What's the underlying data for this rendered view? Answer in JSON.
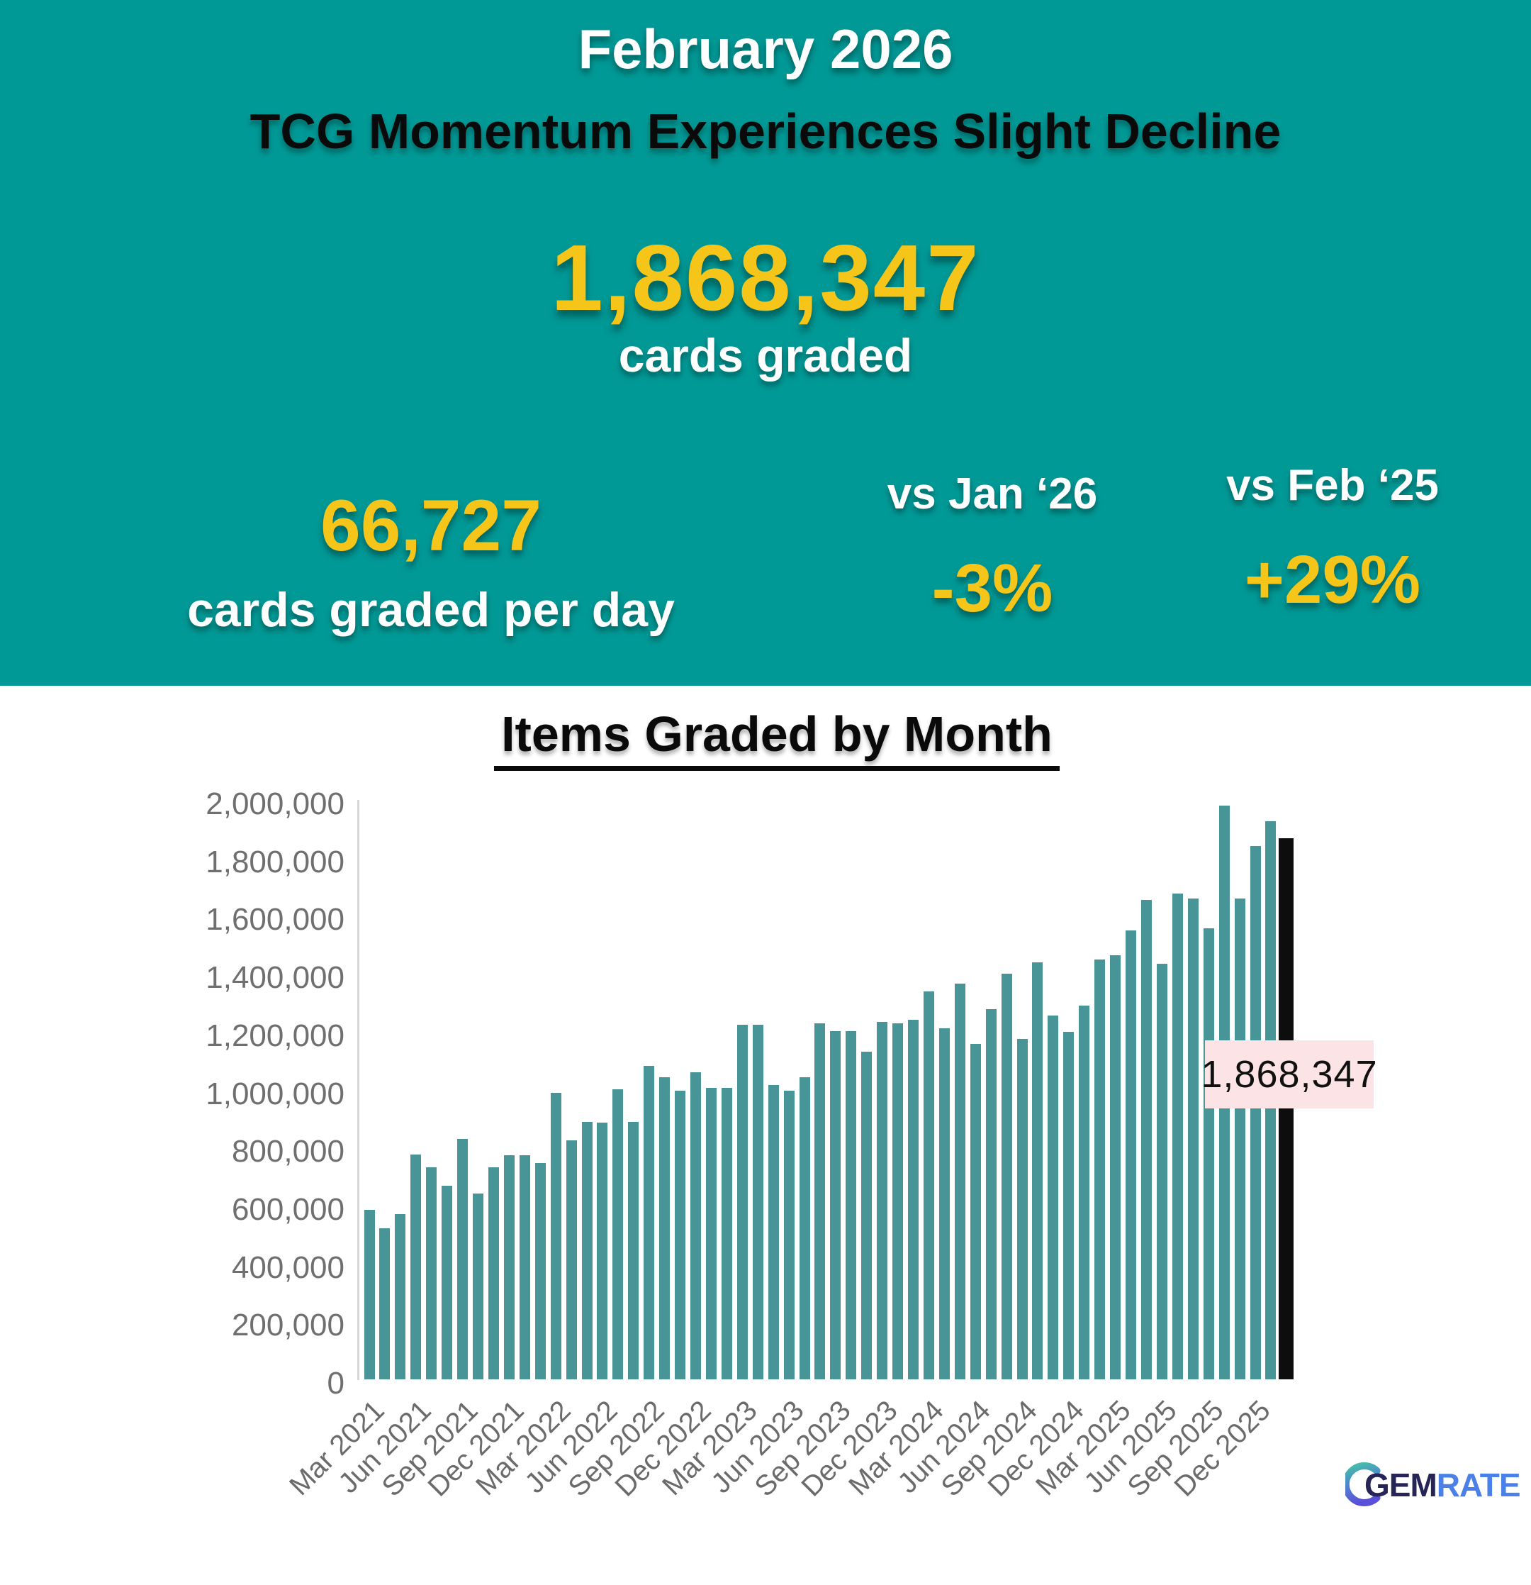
{
  "header": {
    "month_title": "February 2026",
    "headline": "TCG Momentum Experiences Slight Decline",
    "total": {
      "value": "1,868,347",
      "label": "cards graded"
    },
    "per_day": {
      "value": "66,727",
      "label": "cards graded per day"
    },
    "vs_prev_month": {
      "label": "vs Jan ‘26",
      "value": "-3%"
    },
    "vs_prev_year": {
      "label": "vs Feb ‘25",
      "value": "+29%"
    }
  },
  "colors": {
    "header_background": "#009996",
    "accent_yellow": "#f5c51a",
    "bar_teal": "#479596",
    "highlight_bar_black": "#0d0d0d",
    "annotation_pink": "#fce4e6",
    "axis_gray": "#6f6f6f"
  },
  "chart": {
    "title": "Items Graded by Month",
    "annotation": "1,868,347"
  },
  "chart_data": {
    "type": "bar",
    "title": "Items Graded by Month",
    "xlabel": "",
    "ylabel": "",
    "ylim": [
      0,
      2000000
    ],
    "grid": false,
    "legend": "none",
    "y_ticks": [
      "2,000,000",
      "1,800,000",
      "1,600,000",
      "1,400,000",
      "1,200,000",
      "1,000,000",
      "800,000",
      "600,000",
      "400,000",
      "200,000",
      "0"
    ],
    "x_tick_every": 3,
    "x_tick_labels": [
      "Mar 2021",
      "Jun 2021",
      "Sep 2021",
      "Dec 2021",
      "Mar 2022",
      "Jun 2022",
      "Sep 2022",
      "Dec 2022",
      "Mar 2023",
      "Jun 2023",
      "Sep 2023",
      "Dec 2023",
      "Mar 2024",
      "Jun 2024",
      "Sep 2024",
      "Dec 2024",
      "Mar 2025",
      "Jun 2025",
      "Sep 2025",
      "Dec 2025"
    ],
    "categories": [
      "Mar 2021",
      "Apr 2021",
      "May 2021",
      "Jun 2021",
      "Jul 2021",
      "Aug 2021",
      "Sep 2021",
      "Oct 2021",
      "Nov 2021",
      "Dec 2021",
      "Jan 2022",
      "Feb 2022",
      "Mar 2022",
      "Apr 2022",
      "May 2022",
      "Jun 2022",
      "Jul 2022",
      "Aug 2022",
      "Sep 2022",
      "Oct 2022",
      "Nov 2022",
      "Dec 2022",
      "Jan 2023",
      "Feb 2023",
      "Mar 2023",
      "Apr 2023",
      "May 2023",
      "Jun 2023",
      "Jul 2023",
      "Aug 2023",
      "Sep 2023",
      "Oct 2023",
      "Nov 2023",
      "Dec 2023",
      "Jan 2024",
      "Feb 2024",
      "Mar 2024",
      "Apr 2024",
      "May 2024",
      "Jun 2024",
      "Jul 2024",
      "Aug 2024",
      "Sep 2024",
      "Oct 2024",
      "Nov 2024",
      "Dec 2024",
      "Jan 2025",
      "Feb 2025",
      "Mar 2025",
      "Apr 2025",
      "May 2025",
      "Jun 2025",
      "Jul 2025",
      "Aug 2025",
      "Sep 2025",
      "Oct 2025",
      "Nov 2025",
      "Dec 2025",
      "Jan 2026",
      "Feb 2026"
    ],
    "values": [
      585000,
      522000,
      571000,
      776000,
      732000,
      668000,
      831000,
      641000,
      732000,
      774000,
      774000,
      747000,
      989000,
      824000,
      889000,
      886000,
      1000000,
      888000,
      1083000,
      1042000,
      997000,
      1059000,
      1005000,
      1007000,
      1223000,
      1223000,
      1015000,
      997000,
      1042000,
      1230000,
      1203000,
      1203000,
      1130000,
      1233000,
      1229000,
      1240000,
      1339000,
      1211000,
      1367000,
      1159000,
      1277000,
      1400000,
      1174000,
      1440000,
      1255000,
      1200000,
      1290000,
      1448000,
      1465000,
      1550000,
      1655000,
      1435000,
      1678000,
      1660000,
      1556000,
      1980000,
      1660000,
      1840000,
      1926000,
      1868347
    ],
    "highlight_index": 59,
    "highlight_label": "1,868,347"
  },
  "logo": {
    "gem": "GEM",
    "rate": "RATE"
  }
}
